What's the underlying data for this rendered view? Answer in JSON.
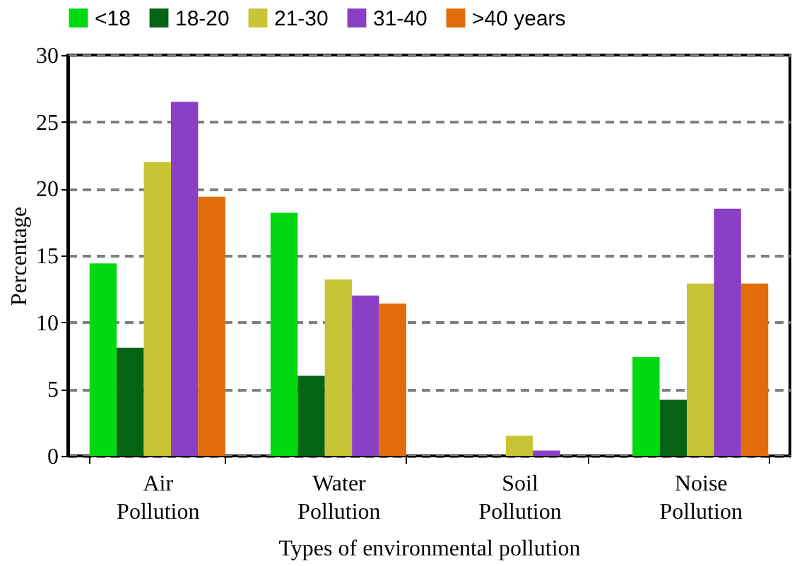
{
  "chart_data": {
    "type": "bar",
    "xlabel": "Types of environmental  pollution",
    "ylabel": "Percentage",
    "categories": [
      "Air Pollution",
      "Water Pollution",
      "Soil Pollution",
      "Noise Pollution"
    ],
    "series": [
      {
        "name": "<18",
        "color": "#00d90f",
        "values": [
          14.4,
          18.2,
          0,
          7.4
        ]
      },
      {
        "name": "18-20",
        "color": "#056314",
        "values": [
          8.1,
          6.0,
          0,
          4.2
        ]
      },
      {
        "name": "21-30",
        "color": "#c8c435",
        "values": [
          22.0,
          13.2,
          1.5,
          12.9
        ]
      },
      {
        "name": "31-40",
        "color": "#8b3fc4",
        "values": [
          26.5,
          12.0,
          0.4,
          18.5
        ]
      },
      {
        "name": ">40 years",
        "color": "#e36c0a",
        "values": [
          19.4,
          11.4,
          0,
          12.9
        ]
      }
    ],
    "ylim": [
      0,
      30
    ],
    "yticks": [
      0,
      5,
      10,
      15,
      20,
      25,
      30
    ],
    "grid": "y",
    "legend": "top"
  }
}
